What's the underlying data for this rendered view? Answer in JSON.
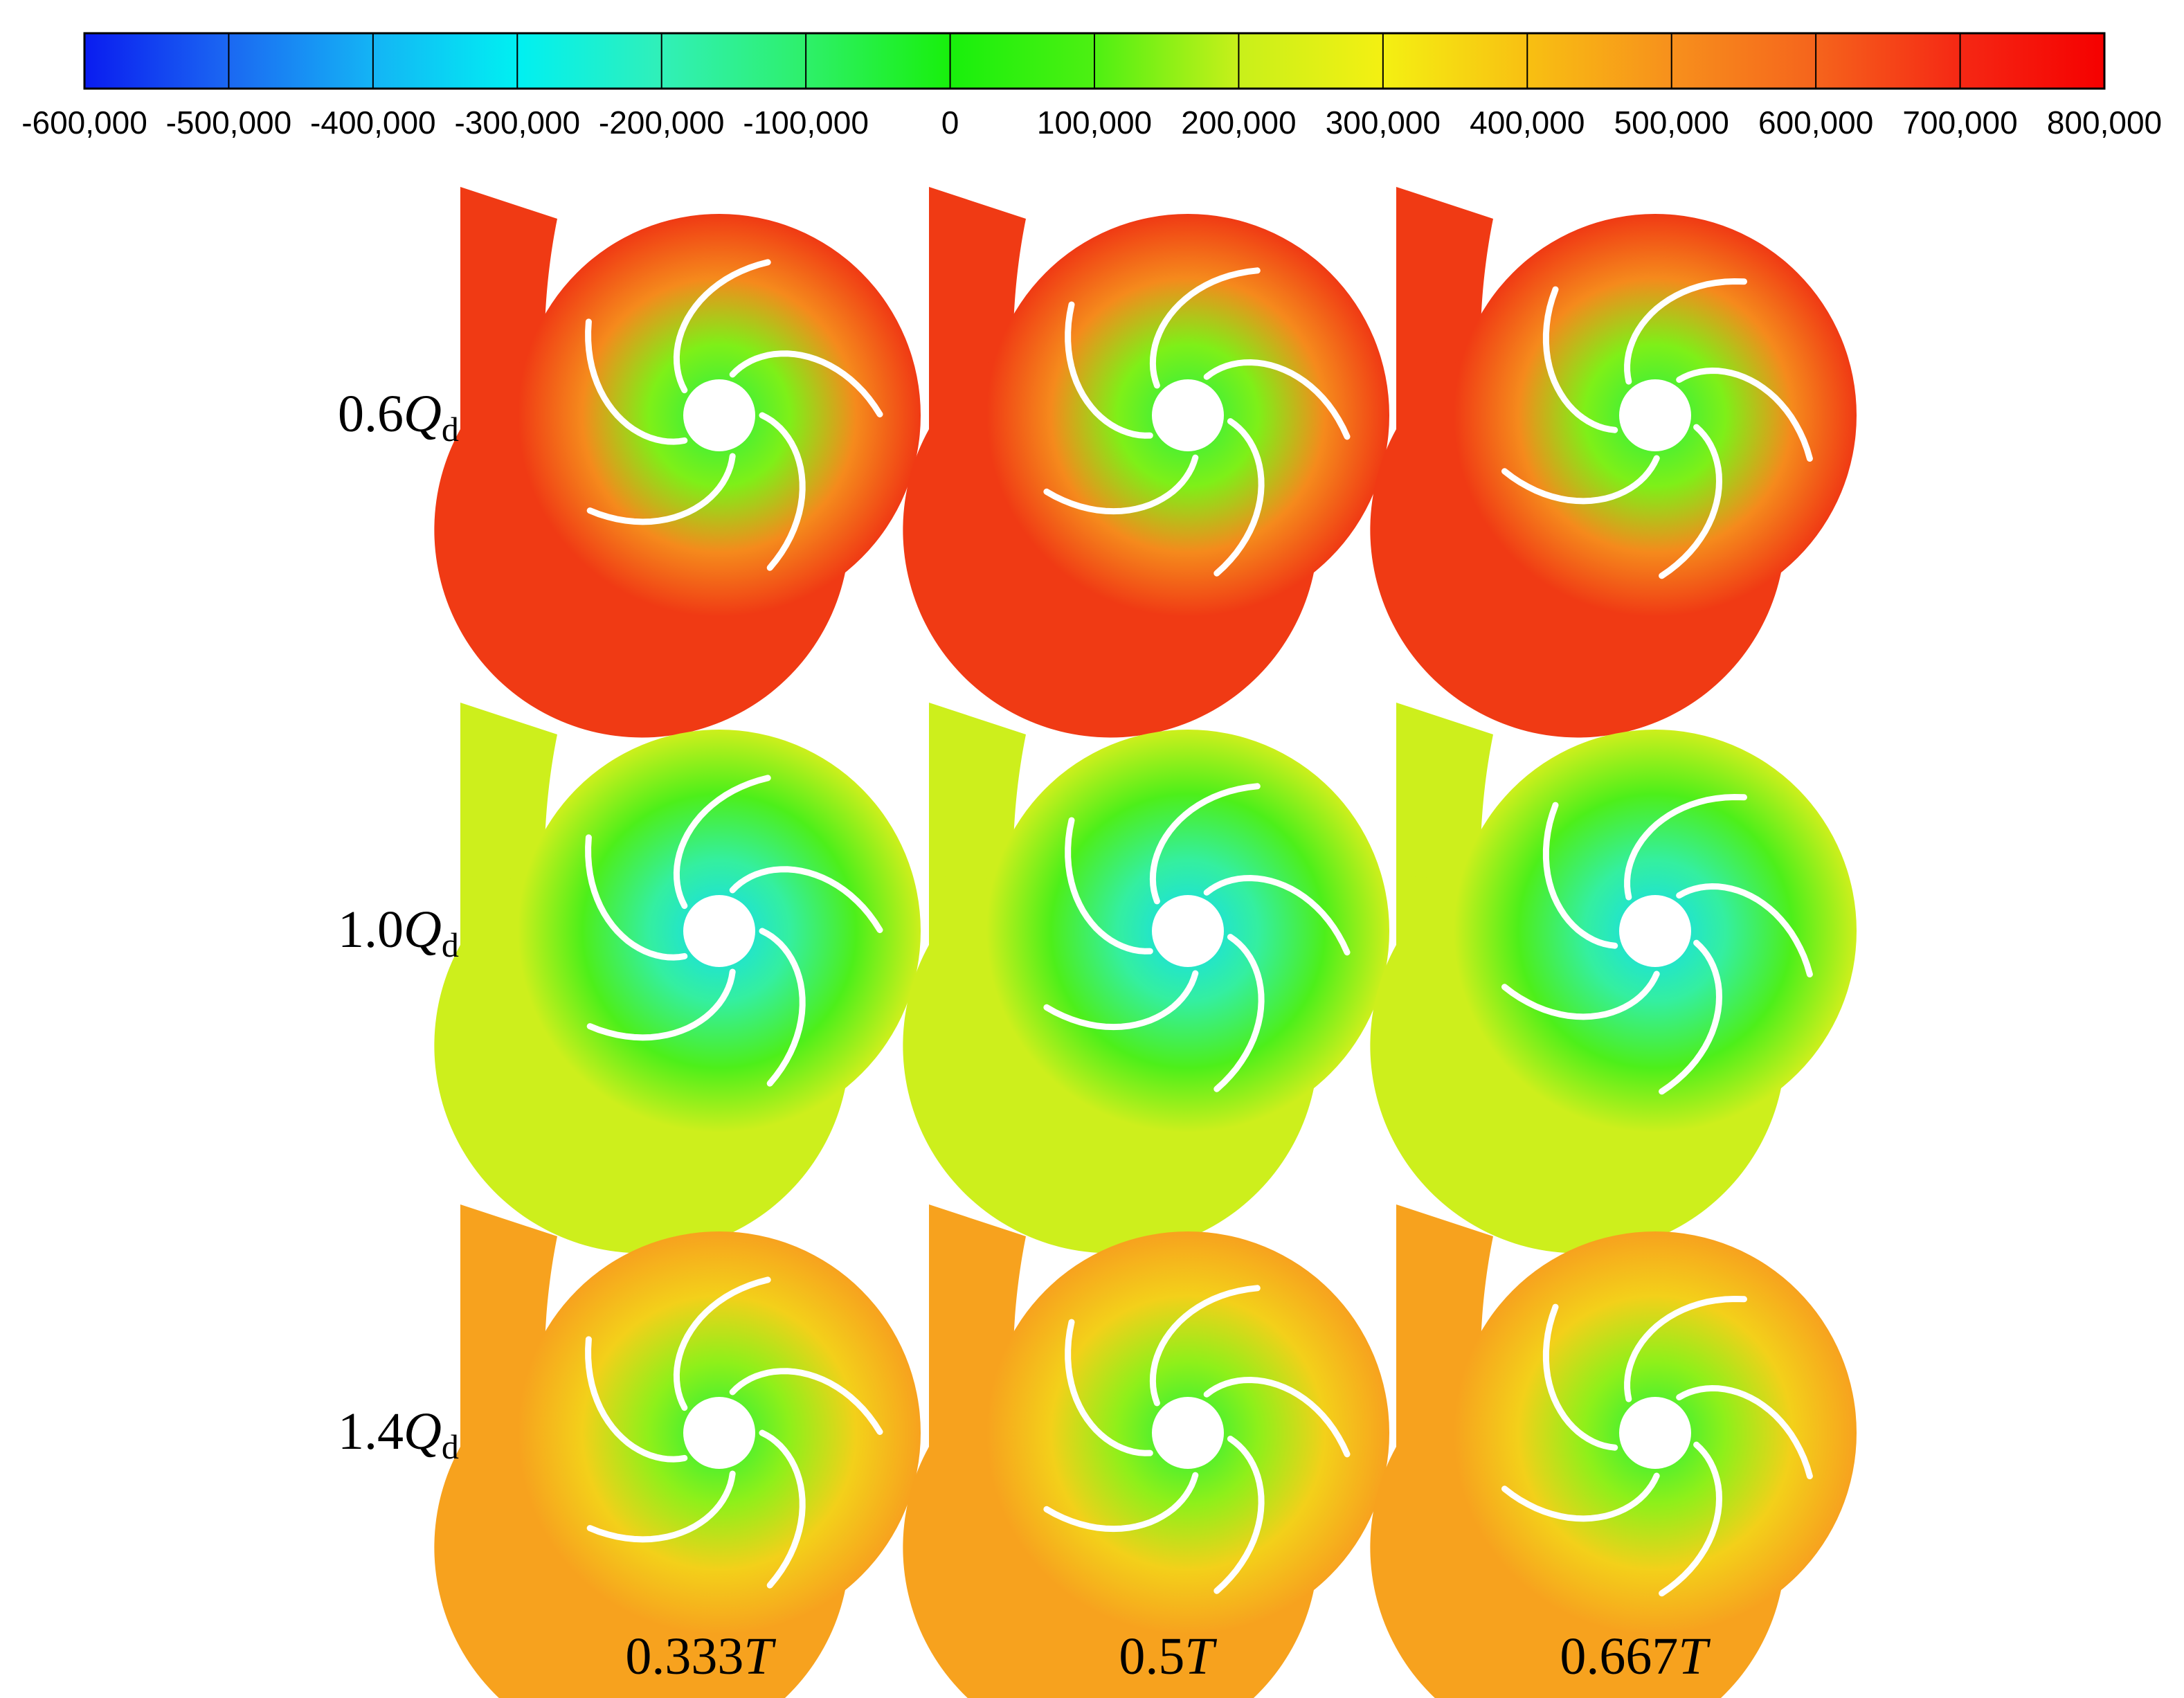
{
  "colorbar": {
    "ticks": [
      "-600,000",
      "-500,000",
      "-400,000",
      "-300,000",
      "-200,000",
      "-100,000",
      "0",
      "100,000",
      "200,000",
      "300,000",
      "400,000",
      "500,000",
      "600,000",
      "700,000",
      "800,000"
    ],
    "colors": [
      "#0a1cf0",
      "#1b68f2",
      "#14b4f5",
      "#00f0f2",
      "#30f0b8",
      "#2ef06a",
      "#18f00c",
      "#4df012",
      "#c8f01a",
      "#f4f012",
      "#f8c012",
      "#f7901c",
      "#f5641c",
      "#f52814",
      "#f50000"
    ]
  },
  "rows": [
    {
      "num": "0.6",
      "q": "Q",
      "sub": "d",
      "fields": {
        "outer": "#f03a14",
        "mid": "#f58a1c",
        "inner": "#7ef018",
        "hub": "#26ef44"
      }
    },
    {
      "num": "1.0",
      "q": "Q",
      "sub": "d",
      "fields": {
        "outer": "#cdef1c",
        "mid": "#4def1a",
        "inner": "#34efa0",
        "hub": "#12dcf0"
      }
    },
    {
      "num": "1.4",
      "q": "Q",
      "sub": "d",
      "fields": {
        "outer": "#f7a21e",
        "mid": "#f3d01a",
        "inner": "#8ef01a",
        "hub": "#24ef3a"
      }
    }
  ],
  "columns": [
    {
      "num": "0.333",
      "t": "T"
    },
    {
      "num": "0.5",
      "t": "T"
    },
    {
      "num": "0.667",
      "t": "T"
    }
  ],
  "blade_count": 5
}
